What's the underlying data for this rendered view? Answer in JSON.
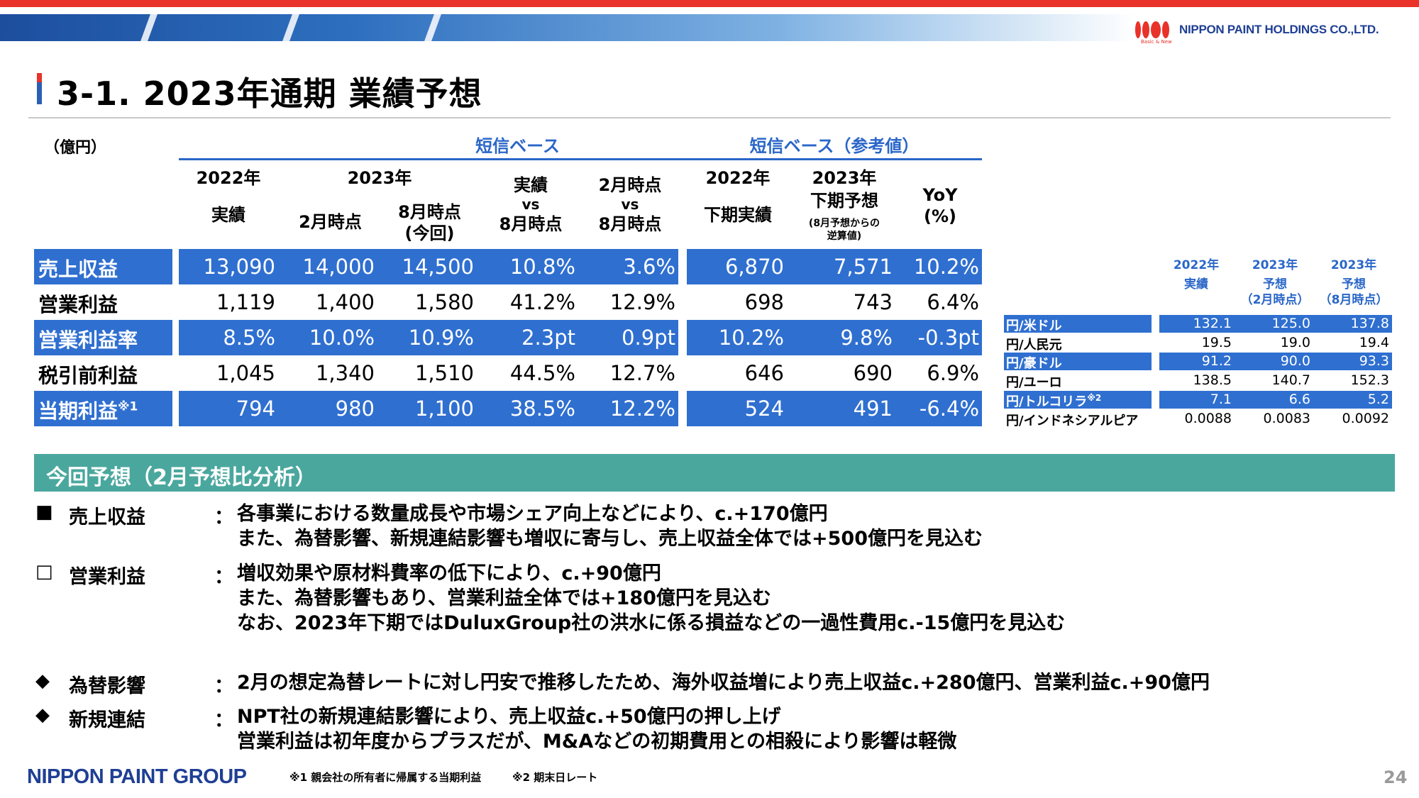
{
  "header": {
    "logo_text": "NIPPON PAINT HOLDINGS CO.,LTD.",
    "logo_sub": "Basic & New"
  },
  "page": {
    "title": "3-1. 2023年通期 業績予想",
    "number": "24"
  },
  "table": {
    "unit": "（億円）",
    "group1": "短信ベース",
    "group2": "短信ベース（参考値）",
    "headers": {
      "c1_top": "2022年",
      "c1_bottom": "実績",
      "c23_top": "2023年",
      "c2_bottom": "2月時点",
      "c3_bottom1": "8月時点",
      "c3_bottom2": "(今回)",
      "c4_l1": "実績",
      "c4_l2": "vs",
      "c4_l3": "8月時点",
      "c5_l1": "2月時点",
      "c5_l2": "vs",
      "c5_l3": "8月時点",
      "c6_top": "2022年",
      "c6_bottom": "下期実績",
      "c7_top": "2023年",
      "c7_mid": "下期予想",
      "c7_n1": "(8月予想からの",
      "c7_n2": "逆算値)",
      "c8_l1": "YoY",
      "c8_l2": "(%)"
    },
    "rows": [
      {
        "label": "売上収益",
        "sup": "",
        "blue": true,
        "values": [
          "13,090",
          "14,000",
          "14,500",
          "10.8%",
          "3.6%",
          "6,870",
          "7,571",
          "10.2%"
        ]
      },
      {
        "label": "営業利益",
        "sup": "",
        "blue": false,
        "values": [
          "1,119",
          "1,400",
          "1,580",
          "41.2%",
          "12.9%",
          "698",
          "743",
          "6.4%"
        ]
      },
      {
        "label": "営業利益率",
        "sup": "",
        "blue": true,
        "values": [
          "8.5%",
          "10.0%",
          "10.9%",
          "2.3pt",
          "0.9pt",
          "10.2%",
          "9.8%",
          "-0.3pt"
        ]
      },
      {
        "label": "税引前利益",
        "sup": "",
        "blue": false,
        "values": [
          "1,045",
          "1,340",
          "1,510",
          "44.5%",
          "12.7%",
          "646",
          "690",
          "6.9%"
        ]
      },
      {
        "label": "当期利益",
        "sup": "※1",
        "blue": true,
        "values": [
          "794",
          "980",
          "1,100",
          "38.5%",
          "12.2%",
          "524",
          "491",
          "-6.4%"
        ]
      }
    ]
  },
  "fx": {
    "headers": [
      {
        "top": "2022年",
        "mid": "実績",
        "bottom": ""
      },
      {
        "top": "2023年",
        "mid": "予想",
        "bottom": "（2月時点）"
      },
      {
        "top": "2023年",
        "mid": "予想",
        "bottom": "（8月時点）"
      }
    ],
    "rows": [
      {
        "label": "円/米ドル",
        "sup": "",
        "blue": true,
        "values": [
          "132.1",
          "125.0",
          "137.8"
        ]
      },
      {
        "label": "円/人民元",
        "sup": "",
        "blue": false,
        "values": [
          "19.5",
          "19.0",
          "19.4"
        ]
      },
      {
        "label": "円/豪ドル",
        "sup": "",
        "blue": true,
        "values": [
          "91.2",
          "90.0",
          "93.3"
        ]
      },
      {
        "label": "円/ユーロ",
        "sup": "",
        "blue": false,
        "values": [
          "138.5",
          "140.7",
          "152.3"
        ]
      },
      {
        "label": "円/トルコリラ",
        "sup": "※2",
        "blue": true,
        "values": [
          "7.1",
          "6.6",
          "5.2"
        ]
      },
      {
        "label": "円/インドネシアルピア",
        "sup": "",
        "blue": false,
        "values": [
          "0.0088",
          "0.0083",
          "0.0092"
        ]
      }
    ]
  },
  "analysis": {
    "title": "今回予想（2月予想比分析）",
    "items": [
      {
        "mark": "■",
        "label": "売上収益",
        "colon": "：",
        "lines": [
          "各事業における数量成長や市場シェア向上などにより、c.+170億円",
          "また、為替影響、新規連結影響も増収に寄与し、売上収益全体では+500億円を見込む"
        ]
      },
      {
        "mark": "□",
        "label": "営業利益",
        "colon": "：",
        "lines": [
          "増収効果や原材料費率の低下により、c.+90億円",
          "また、為替影響もあり、営業利益全体では+180億円を見込む",
          "なお、2023年下期ではDuluxGroup社の洪水に係る損益などの一過性費用c.-15億円を見込む"
        ]
      },
      {
        "mark": "◆",
        "label": "為替影響",
        "colon": "：",
        "lines": [
          "2月の想定為替レートに対し円安で推移したため、海外収益増により売上収益c.+280億円、営業利益c.+90億円"
        ]
      },
      {
        "mark": "◆",
        "label": "新規連結",
        "colon": "：",
        "lines": [
          "NPT社の新規連結影響により、売上収益c.+50億円の押し上げ",
          "営業利益は初年度からプラスだが、M&Aなどの初期費用との相殺により影響は軽微"
        ]
      }
    ]
  },
  "footer": {
    "brand": "NIPPON PAINT GROUP",
    "note1": "※1 親会社の所有者に帰属する当期利益",
    "note2": "※2 期末日レート"
  }
}
